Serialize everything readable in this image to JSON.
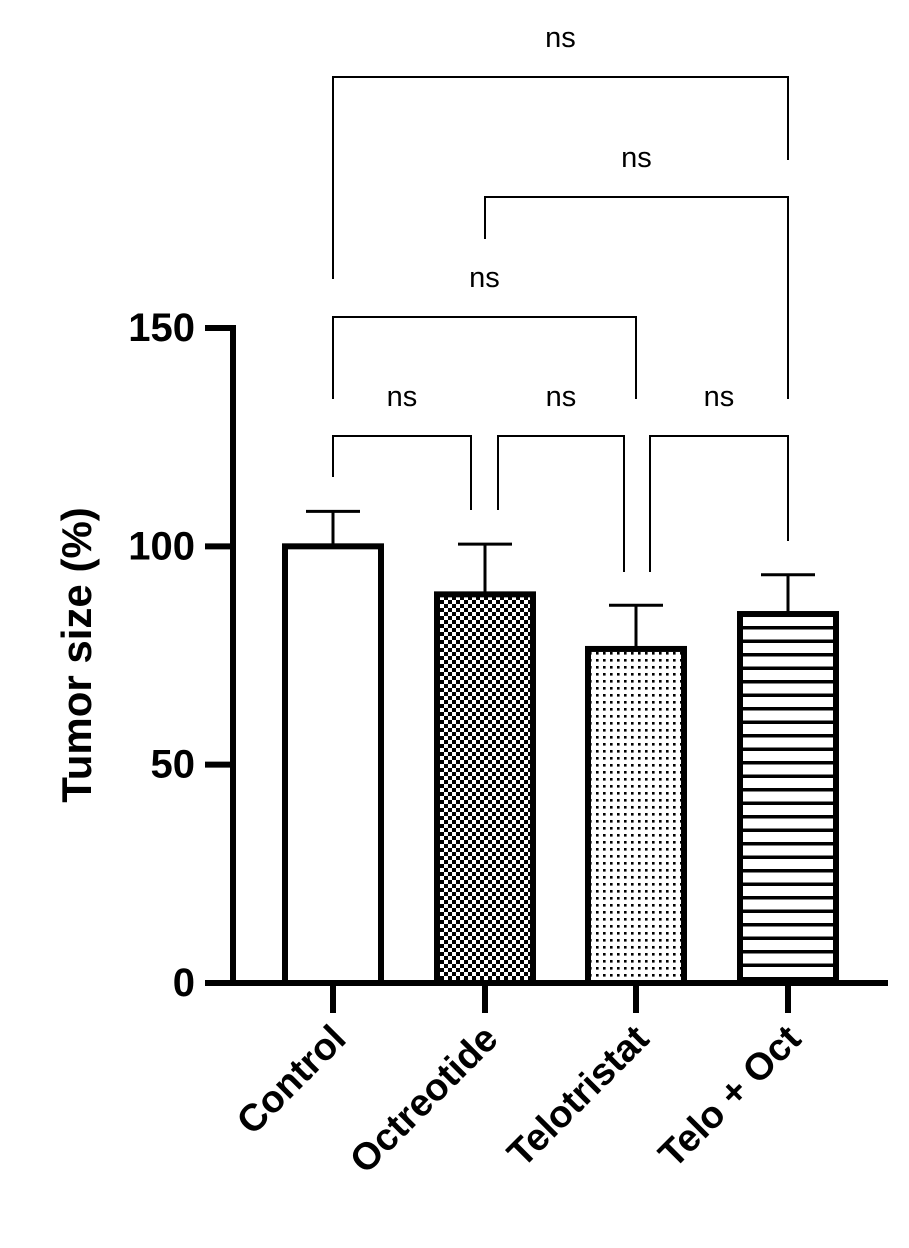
{
  "chart_data": {
    "type": "bar",
    "title": "",
    "xlabel": "",
    "ylabel": "Tumor size (%)",
    "ylim": [
      0,
      150
    ],
    "yticks": [
      0,
      50,
      100,
      150
    ],
    "categories": [
      "Control",
      "Octreotide",
      "Telotristat",
      "Telo + Oct"
    ],
    "values": [
      100,
      89,
      76.5,
      84.5
    ],
    "error": [
      8,
      11.5,
      10,
      9
    ],
    "patterns": [
      "none",
      "checker",
      "dots",
      "hlines"
    ],
    "comparisons": [
      {
        "from": 0,
        "to": 1,
        "label": "ns"
      },
      {
        "from": 1,
        "to": 2,
        "label": "ns"
      },
      {
        "from": 2,
        "to": 3,
        "label": "ns"
      },
      {
        "from": 0,
        "to": 2,
        "label": "ns"
      },
      {
        "from": 1,
        "to": 3,
        "label": "ns"
      },
      {
        "from": 0,
        "to": 3,
        "label": "ns"
      }
    ]
  }
}
